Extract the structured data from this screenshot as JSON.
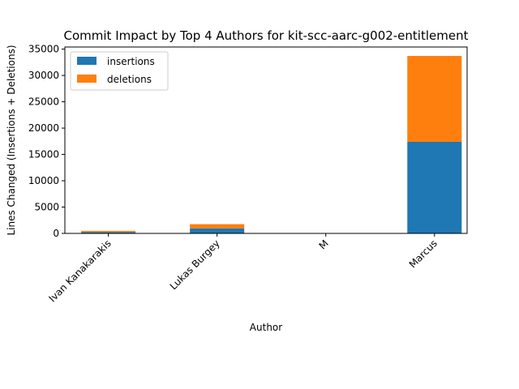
{
  "chart_data": {
    "type": "bar",
    "stacked": true,
    "title": "Commit Impact by Top 4 Authors for kit-scc-aarc-g002-entitlement",
    "xlabel": "Author",
    "ylabel": "Lines Changed (Insertions + Deletions)",
    "categories": [
      "Ivan Kanakarakis",
      "Lukas Burgey",
      "M",
      "Marcus"
    ],
    "series": [
      {
        "name": "insertions",
        "color": "#1f77b4",
        "values": [
          250,
          950,
          0,
          17400
        ]
      },
      {
        "name": "deletions",
        "color": "#ff7f0e",
        "values": [
          230,
          800,
          0,
          16300
        ]
      }
    ],
    "ylim": [
      0,
      35400
    ],
    "yticks": [
      0,
      5000,
      10000,
      15000,
      20000,
      25000,
      30000,
      35000
    ],
    "ytick_labels": [
      "0",
      "5000",
      "10000",
      "15000",
      "20000",
      "25000",
      "30000",
      "35000"
    ],
    "grid": false,
    "legend_position": "top-left"
  }
}
